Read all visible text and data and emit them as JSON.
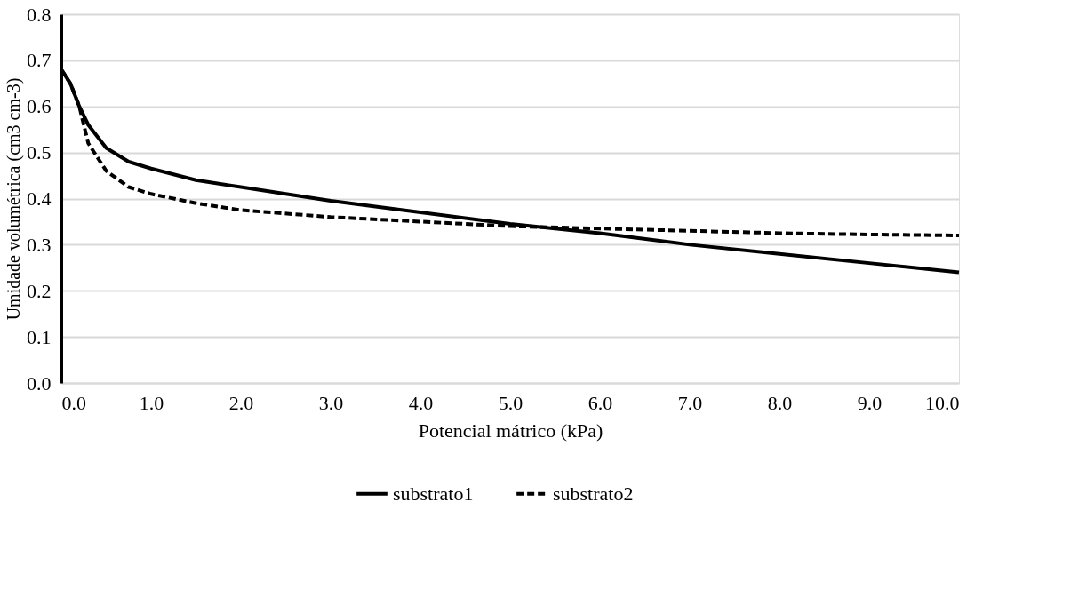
{
  "chart_data": {
    "type": "line",
    "xlabel": "Potencial mátrico (kPa)",
    "ylabel": "Umidade volumétrica (cm3 cm-3)",
    "x": [
      0,
      0.1,
      0.2,
      0.3,
      0.5,
      0.75,
      1,
      1.5,
      2,
      3,
      4,
      5,
      6,
      7,
      8,
      9,
      10
    ],
    "series": [
      {
        "name": "substrato1",
        "color": "#000000",
        "line_style": "solid",
        "values": [
          0.68,
          0.65,
          0.6,
          0.56,
          0.51,
          0.48,
          0.465,
          0.44,
          0.425,
          0.395,
          0.37,
          0.345,
          0.325,
          0.3,
          0.28,
          0.26,
          0.24
        ]
      },
      {
        "name": "substrato2",
        "color": "#000000",
        "line_style": "dashed",
        "values": [
          0.68,
          0.65,
          0.6,
          0.52,
          0.46,
          0.425,
          0.41,
          0.39,
          0.375,
          0.36,
          0.35,
          0.34,
          0.335,
          0.33,
          0.325,
          0.322,
          0.32
        ]
      }
    ],
    "xlim": [
      0,
      10
    ],
    "xticks": [
      {
        "value": 0,
        "label": "0.0"
      },
      {
        "value": 1,
        "label": "1.0"
      },
      {
        "value": 2,
        "label": "2.0"
      },
      {
        "value": 3,
        "label": "3.0"
      },
      {
        "value": 4,
        "label": "4.0"
      },
      {
        "value": 5,
        "label": "5.0"
      },
      {
        "value": 6,
        "label": "6.0"
      },
      {
        "value": 7,
        "label": "7.0"
      },
      {
        "value": 8,
        "label": "8.0"
      },
      {
        "value": 9,
        "label": "9.0"
      },
      {
        "value": 10,
        "label": "10.0"
      }
    ],
    "ylim": [
      0,
      0.8
    ],
    "yticks": [
      {
        "value": 0,
        "label": "0.0"
      },
      0.1,
      0.2,
      0.3,
      0.4,
      0.5,
      0.6,
      0.7,
      0.8
    ],
    "grid": "y",
    "legend": "bottom",
    "marker": "none"
  }
}
